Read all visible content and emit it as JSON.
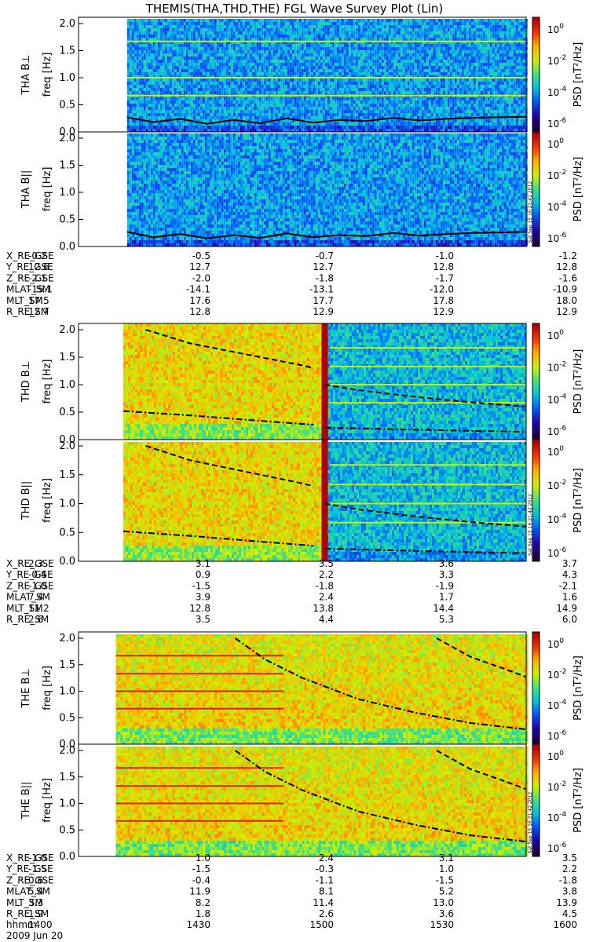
{
  "title": "THEMIS(THA,THD,THE) FGL Wave Survey Plot (Lin)",
  "date_label": "2009 Jun 20",
  "colorbar": {
    "label": "PSD [nT²/Hz]",
    "ticks": [
      {
        "base": "10",
        "exp": "0"
      },
      {
        "base": "10",
        "exp": "-2"
      },
      {
        "base": "10",
        "exp": "-4"
      },
      {
        "base": "10",
        "exp": "-6"
      }
    ]
  },
  "colors": {
    "palette": [
      "#1a0030",
      "#2200aa",
      "#0050ff",
      "#00c0e0",
      "#40e080",
      "#d0f000",
      "#ffb000",
      "#ff3000",
      "#b00000"
    ]
  },
  "chart_data": [
    {
      "type": "heatmap",
      "probe": "THA",
      "component": "B⊥",
      "ylabel": "freq [Hz]",
      "panel_label": "THA B⊥",
      "ylim": [
        0,
        2.0
      ],
      "yticks": [
        "0.0",
        "0.5",
        "1.0",
        "1.5",
        "2.0"
      ],
      "data_start_hhmm": 1413,
      "data_end_hhmm": 1600,
      "level": "low",
      "harmonic_lines_hz": [
        0.67,
        1.0,
        1.67
      ],
      "curves": [
        {
          "style": "solid",
          "y_hz": [
            0.27,
            0.18,
            0.24,
            0.15,
            0.22,
            0.16,
            0.25,
            0.17,
            0.22,
            0.2,
            0.26,
            0.21,
            0.24,
            0.26,
            0.27,
            0.28
          ]
        }
      ]
    },
    {
      "type": "heatmap",
      "probe": "THA",
      "component": "B||",
      "ylabel": "freq [Hz]",
      "panel_label": "THA B||",
      "ylim": [
        0,
        2.0
      ],
      "yticks": [
        "0.0",
        "0.5",
        "1.0",
        "1.5",
        "2.0"
      ],
      "data_start_hhmm": 1413,
      "data_end_hhmm": 1600,
      "level": "low",
      "harmonic_lines_hz": [],
      "stamp": "Sat Sep 15 16:21:41 2012",
      "curves": [
        {
          "style": "solid",
          "y_hz": [
            0.27,
            0.17,
            0.23,
            0.15,
            0.21,
            0.16,
            0.24,
            0.17,
            0.21,
            0.19,
            0.25,
            0.2,
            0.23,
            0.25,
            0.26,
            0.27
          ]
        }
      ]
    },
    {
      "type": "heatmap",
      "probe": "THD",
      "component": "B⊥",
      "ylabel": "freq [Hz]",
      "panel_label": "THD B⊥",
      "ylim": [
        0,
        2.0
      ],
      "yticks": [
        "0.0",
        "0.5",
        "1.0",
        "1.5",
        "2.0"
      ],
      "data_start_hhmm": 1412,
      "data_end_hhmm": 1600,
      "level": "split",
      "split_hhmm": 1506,
      "harmonic_lines_hz": [
        0.67,
        1.0,
        1.33,
        1.67
      ],
      "curves": [
        {
          "style": "dashed",
          "x_hhmm": [
            1418,
            1430,
            1445,
            1500,
            1503
          ],
          "y_hz": [
            2.0,
            1.75,
            1.55,
            1.35,
            1.3
          ]
        },
        {
          "style": "dashed",
          "x_hhmm": [
            1506,
            1515,
            1530,
            1545,
            1600
          ],
          "y_hz": [
            1.0,
            0.9,
            0.78,
            0.68,
            0.6
          ]
        },
        {
          "style": "dashdot",
          "x_hhmm": [
            1412,
            1430,
            1445,
            1503
          ],
          "y_hz": [
            0.52,
            0.44,
            0.36,
            0.27
          ]
        },
        {
          "style": "dashdot",
          "x_hhmm": [
            1506,
            1530,
            1600
          ],
          "y_hz": [
            0.22,
            0.18,
            0.14
          ]
        }
      ]
    },
    {
      "type": "heatmap",
      "probe": "THD",
      "component": "B||",
      "ylabel": "freq [Hz]",
      "panel_label": "THD B||",
      "ylim": [
        0,
        2.0
      ],
      "yticks": [
        "0.0",
        "0.5",
        "1.0",
        "1.5",
        "2.0"
      ],
      "data_start_hhmm": 1412,
      "data_end_hhmm": 1600,
      "level": "split",
      "split_hhmm": 1506,
      "harmonic_lines_hz": [
        0.67,
        1.0,
        1.33,
        1.67
      ],
      "stamp": "Sat Sep 15 16:21:42 2012",
      "curves": [
        {
          "style": "dashed",
          "x_hhmm": [
            1418,
            1430,
            1445,
            1500,
            1503
          ],
          "y_hz": [
            2.0,
            1.75,
            1.55,
            1.35,
            1.3
          ]
        },
        {
          "style": "dashed",
          "x_hhmm": [
            1506,
            1515,
            1530,
            1545,
            1600
          ],
          "y_hz": [
            1.0,
            0.9,
            0.78,
            0.68,
            0.6
          ]
        },
        {
          "style": "dashdot",
          "x_hhmm": [
            1412,
            1430,
            1445,
            1503
          ],
          "y_hz": [
            0.52,
            0.44,
            0.36,
            0.27
          ]
        },
        {
          "style": "dashdot",
          "x_hhmm": [
            1506,
            1530,
            1600
          ],
          "y_hz": [
            0.22,
            0.18,
            0.14
          ]
        }
      ]
    },
    {
      "type": "heatmap",
      "probe": "THE",
      "component": "B⊥",
      "ylabel": "freq [Hz]",
      "panel_label": "THE B⊥",
      "ylim": [
        0,
        2.0
      ],
      "yticks": [
        "0.0",
        "0.5",
        "1.0",
        "1.5",
        "2.0"
      ],
      "data_start_hhmm": 1410,
      "data_end_hhmm": 1600,
      "level": "high",
      "harmonic_lines_hz": [
        0.67,
        1.0,
        1.33,
        1.67
      ],
      "curves": [
        {
          "style": "dashdot",
          "x_hhmm": [
            1442,
            1450,
            1500,
            1515,
            1530,
            1545,
            1600
          ],
          "y_hz": [
            2.0,
            1.6,
            1.25,
            0.85,
            0.6,
            0.4,
            0.28
          ]
        },
        {
          "style": "dashed",
          "x_hhmm": [
            1536,
            1545,
            1555,
            1600
          ],
          "y_hz": [
            2.0,
            1.65,
            1.4,
            1.27
          ]
        }
      ]
    },
    {
      "type": "heatmap",
      "probe": "THE",
      "component": "B||",
      "ylabel": "freq [Hz]",
      "panel_label": "THE B||",
      "ylim": [
        0,
        2.0
      ],
      "yticks": [
        "0.0",
        "0.5",
        "1.0",
        "1.5",
        "2.0"
      ],
      "data_start_hhmm": 1410,
      "data_end_hhmm": 1600,
      "level": "high",
      "harmonic_lines_hz": [
        0.67,
        1.0,
        1.33,
        1.67
      ],
      "stamp": "Sat Sep 15 16:21:42 2012",
      "curves": [
        {
          "style": "dashdot",
          "x_hhmm": [
            1442,
            1450,
            1500,
            1515,
            1530,
            1545,
            1600
          ],
          "y_hz": [
            2.0,
            1.6,
            1.25,
            0.85,
            0.6,
            0.4,
            0.28
          ]
        },
        {
          "style": "dashed",
          "x_hhmm": [
            1536,
            1545,
            1555,
            1600
          ],
          "y_hz": [
            2.0,
            1.65,
            1.4,
            1.27
          ]
        }
      ]
    }
  ],
  "ephemeris": [
    {
      "rows": [
        {
          "label": "X_RE_GSE",
          "values": [
            "-0.2",
            "-0.5",
            "-0.7",
            "-1.0",
            "-1.2"
          ]
        },
        {
          "label": "Y_RE_GSE",
          "values": [
            "12.6",
            "12.7",
            "12.7",
            "12.8",
            "12.8"
          ]
        },
        {
          "label": "Z_RE_GSE",
          "values": [
            "-2.1",
            "-2.0",
            "-1.8",
            "-1.7",
            "-1.6"
          ]
        },
        {
          "label": "MLAT_SM",
          "values": [
            "-15.1",
            "-14.1",
            "-13.1",
            "-12.0",
            "-10.9"
          ]
        },
        {
          "label": "MLT_SM",
          "values": [
            "17.5",
            "17.6",
            "17.7",
            "17.8",
            "18.0"
          ]
        },
        {
          "label": "R_RE_SM",
          "values": [
            "12.7",
            "12.8",
            "12.9",
            "12.9",
            "12.9"
          ]
        }
      ]
    },
    {
      "rows": [
        {
          "label": "X_RE_GSE",
          "values": [
            "2.3",
            "3.1",
            "3.5",
            "3.6",
            "3.7"
          ]
        },
        {
          "label": "Y_RE_GSE",
          "values": [
            "-0.4",
            "0.9",
            "2.2",
            "3.3",
            "4.3"
          ]
        },
        {
          "label": "Z_RE_GSE",
          "values": [
            "-1.0",
            "-1.5",
            "-1.8",
            "-1.9",
            "-2.1"
          ]
        },
        {
          "label": "MLAT_SM",
          "values": [
            "7.4",
            "3.9",
            "2.4",
            "1.7",
            "1.6"
          ]
        },
        {
          "label": "MLT_SM",
          "values": [
            "11.2",
            "12.8",
            "13.8",
            "14.4",
            "14.9"
          ]
        },
        {
          "label": "R_RE_SM",
          "values": [
            "2.6",
            "3.5",
            "4.4",
            "5.3",
            "6.0"
          ]
        }
      ]
    },
    {
      "rows": [
        {
          "label": "X_RE_GSE",
          "values": [
            "-1.0",
            "1.0",
            "2.4",
            "3.1",
            "3.5"
          ]
        },
        {
          "label": "Y_RE_GSE",
          "values": [
            "-1.5",
            "-1.5",
            "-0.3",
            "1.0",
            "2.2"
          ]
        },
        {
          "label": "Z_RE_GSE",
          "values": [
            "0.6",
            "-0.4",
            "-1.1",
            "-1.5",
            "-1.8"
          ]
        },
        {
          "label": "MLAT_SM",
          "values": [
            "5.4",
            "11.9",
            "8.1",
            "5.2",
            "3.8"
          ]
        },
        {
          "label": "MLT_SM",
          "values": [
            "3.3",
            "8.2",
            "11.4",
            "13.0",
            "13.9"
          ]
        },
        {
          "label": "R_RE_SM",
          "values": [
            "1.9",
            "1.8",
            "2.6",
            "3.6",
            "4.5"
          ]
        },
        {
          "label": "hhmm",
          "values": [
            "1400",
            "1430",
            "1500",
            "1530",
            "1600"
          ]
        }
      ]
    }
  ]
}
